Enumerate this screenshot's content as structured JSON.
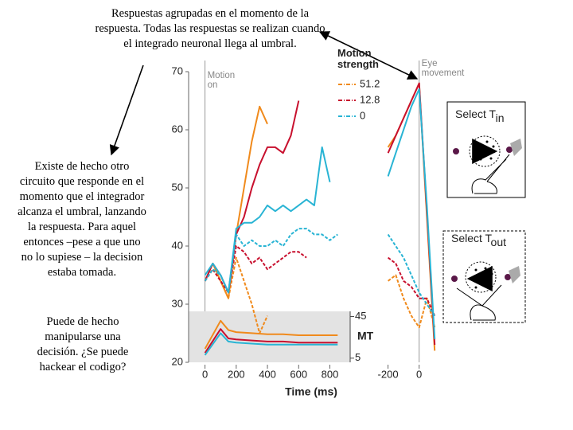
{
  "slide": {
    "top_note": "Respuestas agrupadas en el momento de la respuesta. Todas las respuestas se realizan cuando el integrado neuronal llega al umbral.",
    "left_note": "Existe de hecho otro circuito que responde en el momento que el integrador alcanza el umbral, lanzando la respuesta. Para aquel entonces –pese a que uno no lo supiese – la decision estaba tomada.",
    "bottom_note": "Puede de hecho manipularse una decisión. ¿Se puede hackear el codigo?",
    "tasks": [
      {
        "label": "Select T",
        "subscript": "in"
      },
      {
        "label": "Select T",
        "subscript": "out"
      }
    ]
  },
  "chart_data": [
    {
      "type": "line",
      "xlabel": "Time (ms)",
      "event_label": "Motion on",
      "legend_title": "Motion strength",
      "x": [
        0,
        50,
        100,
        150,
        200,
        250,
        300,
        350,
        400,
        450,
        500,
        550,
        600,
        650,
        700,
        750,
        800,
        850
      ],
      "xlim": [
        -105,
        930
      ],
      "xticks": [
        0,
        200,
        400,
        600,
        800
      ],
      "ylim": [
        20,
        70
      ],
      "yticks": [
        20,
        30,
        40,
        50,
        60,
        70
      ],
      "series": [
        {
          "name": "51.2",
          "color": "#f08a1c",
          "values": [
            34,
            37,
            34,
            31,
            42,
            50,
            58,
            64,
            61,
            null,
            null,
            null,
            null,
            null,
            null,
            null,
            null,
            null
          ],
          "dashed_values": [
            34,
            36,
            34,
            31,
            38,
            34,
            30,
            25,
            28,
            null,
            null,
            null,
            null,
            null,
            null,
            null,
            null,
            null
          ]
        },
        {
          "name": "12.8",
          "color": "#c8102e",
          "values": [
            34,
            37,
            35,
            32,
            42,
            45,
            50,
            54,
            57,
            57,
            56,
            59,
            65,
            null,
            null,
            null,
            null,
            null
          ],
          "dashed_values": [
            34,
            36,
            34,
            32,
            40,
            39,
            37,
            38,
            36,
            37,
            38,
            39,
            39,
            38,
            null,
            null,
            null,
            null
          ]
        },
        {
          "name": "0",
          "color": "#29b4d4",
          "values": [
            35,
            37,
            35,
            32,
            43,
            44,
            44,
            45,
            47,
            46,
            47,
            46,
            47,
            48,
            47,
            57,
            51,
            null
          ],
          "dashed_values": [
            34,
            36,
            35,
            32,
            42,
            40,
            41,
            40,
            40,
            41,
            40,
            42,
            43,
            43,
            42,
            42,
            41,
            42
          ]
        }
      ]
    },
    {
      "type": "line",
      "event_label": "Eye movement",
      "x": [
        -200,
        -150,
        -100,
        -50,
        0,
        50,
        100
      ],
      "xlim": [
        -300,
        150
      ],
      "xticks": [
        -200,
        0
      ],
      "ylim": [
        20,
        70
      ],
      "series": [
        {
          "color": "#f08a1c",
          "values": [
            57,
            59,
            62,
            65,
            68,
            45,
            22
          ],
          "dashed_values": [
            34,
            35,
            31,
            28,
            26,
            31,
            26
          ]
        },
        {
          "color": "#c8102e",
          "values": [
            56,
            59,
            62,
            65,
            68,
            46,
            23
          ],
          "dashed_values": [
            38,
            37,
            34,
            33,
            31,
            31,
            28
          ]
        },
        {
          "color": "#29b4d4",
          "values": [
            52,
            56,
            60,
            64,
            67,
            47,
            24
          ],
          "dashed_values": [
            42,
            40,
            38,
            35,
            32,
            30,
            28
          ]
        }
      ]
    },
    {
      "type": "line",
      "label": "MT",
      "x": [
        0,
        100,
        150,
        200,
        300,
        400,
        500,
        600,
        700,
        800,
        850
      ],
      "xlim": [
        -105,
        930
      ],
      "ylim": [
        1,
        50
      ],
      "yticks": [
        5,
        45
      ],
      "series": [
        {
          "color": "#f08a1c",
          "values": [
            14,
            41,
            32,
            30,
            29,
            28,
            28,
            27,
            27,
            27,
            27
          ]
        },
        {
          "color": "#c8102e",
          "values": [
            10,
            33,
            24,
            23,
            22,
            21,
            21,
            20,
            20,
            20,
            20
          ]
        },
        {
          "color": "#29b4d4",
          "values": [
            8,
            29,
            21,
            20,
            19,
            18,
            18,
            18,
            18,
            18,
            18
          ]
        }
      ]
    }
  ]
}
